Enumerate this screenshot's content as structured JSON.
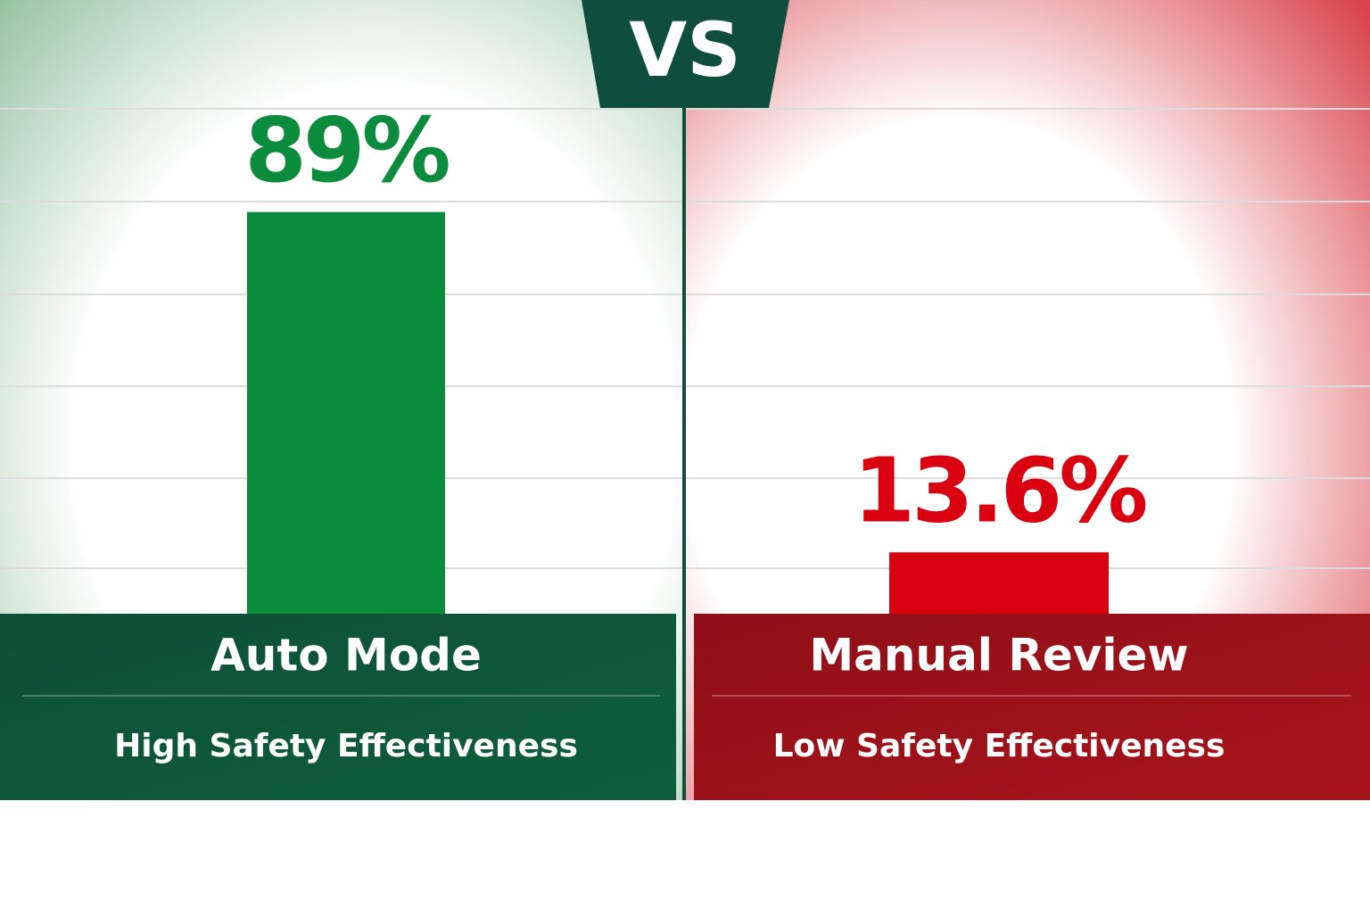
{
  "chart_data": {
    "type": "bar",
    "center_label": "VS",
    "categories": [
      "Auto Mode",
      "Manual Review"
    ],
    "category_subtitles": [
      "High Safety Effectiveness",
      "Low Safety Effectiveness"
    ],
    "values": [
      89,
      13.6
    ],
    "value_labels": [
      "89%",
      "13.6%"
    ],
    "colors": [
      "#0b8c3c",
      "#d9000f"
    ]
  }
}
